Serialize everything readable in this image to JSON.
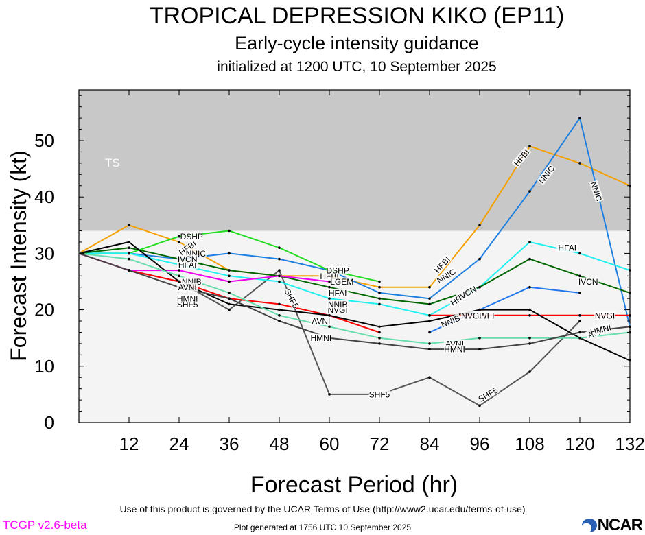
{
  "header": {
    "title": "TROPICAL DEPRESSION KIKO (EP11)",
    "subtitle": "Early-cycle intensity guidance",
    "init": "initialized at 1200 UTC, 10 September 2025"
  },
  "footer": {
    "terms": "Use of this product is governed by the UCAR Terms of Use (http://www2.ucar.edu/terms-of-use)",
    "version": "TCGP v2.6-beta",
    "generated": "Plot generated at 1756 UTC   10 September 2025",
    "logo": "NCAR"
  },
  "chart_data": {
    "type": "line",
    "xlabel": "Forecast Period (hr)",
    "ylabel": "Forecast Intensity (kt)",
    "xlim": [
      0,
      132
    ],
    "ylim": [
      0,
      59
    ],
    "xticks": [
      12,
      24,
      36,
      48,
      60,
      72,
      84,
      96,
      108,
      120,
      132
    ],
    "yticks": [
      0,
      10,
      20,
      30,
      40,
      50
    ],
    "bands": [
      {
        "label": "TS",
        "from": 34,
        "to": 59,
        "color": "#c8c8c8"
      },
      {
        "label": "",
        "from": 0,
        "to": 34,
        "color": "#f4f4f4"
      }
    ],
    "series": [
      {
        "name": "SHF5",
        "color": "#555555",
        "points": [
          [
            0,
            30
          ],
          [
            12,
            27
          ],
          [
            24,
            25
          ],
          [
            36,
            20
          ],
          [
            48,
            27
          ],
          [
            60,
            5
          ],
          [
            72,
            5
          ],
          [
            84,
            8
          ],
          [
            96,
            3
          ],
          [
            108,
            9
          ],
          [
            120,
            18
          ]
        ],
        "labels": [
          {
            "text": "SHF5",
            "x": 26,
            "y": 21
          },
          {
            "text": "SHF5",
            "x": 51,
            "y": 22,
            "angle": 62
          },
          {
            "text": "SHF5",
            "x": 72,
            "y": 5
          },
          {
            "text": "SHF5",
            "x": 98,
            "y": 5,
            "angle": -30
          }
        ]
      },
      {
        "name": "HFBI",
        "color": "#f5a000",
        "points": [
          [
            0,
            30
          ],
          [
            12,
            35
          ],
          [
            24,
            32
          ],
          [
            36,
            27
          ],
          [
            48,
            26
          ],
          [
            60,
            26
          ],
          [
            72,
            24
          ],
          [
            84,
            24
          ],
          [
            96,
            35
          ],
          [
            108,
            49
          ],
          [
            120,
            46
          ],
          [
            132,
            42
          ]
        ],
        "labels": [
          {
            "text": "HFBI",
            "x": 26,
            "y": 31,
            "angle": -35
          },
          {
            "text": "HFBI",
            "x": 60,
            "y": 26
          },
          {
            "text": "HFBI",
            "x": 87,
            "y": 28,
            "angle": -48
          },
          {
            "text": "HFBI",
            "x": 106,
            "y": 47,
            "angle": -50
          }
        ]
      },
      {
        "name": "NNIC",
        "color": "#1e7fe0",
        "points": [
          [
            0,
            30
          ],
          [
            12,
            30
          ],
          [
            24,
            29
          ],
          [
            36,
            30
          ],
          [
            48,
            29
          ],
          [
            60,
            27
          ],
          [
            72,
            23
          ],
          [
            84,
            22
          ],
          [
            96,
            29
          ],
          [
            108,
            41
          ],
          [
            120,
            54
          ],
          [
            132,
            17
          ]
        ],
        "labels": [
          {
            "text": "NNIC",
            "x": 28,
            "y": 30
          },
          {
            "text": "NNIC",
            "x": 88,
            "y": 26,
            "angle": -32
          },
          {
            "text": "NNIC",
            "x": 112,
            "y": 44,
            "angle": -52
          },
          {
            "text": "NNIC",
            "x": 124,
            "y": 41,
            "angle": 72
          }
        ]
      },
      {
        "name": "DSHP",
        "color": "#22dd22",
        "points": [
          [
            0,
            30
          ],
          [
            12,
            30
          ],
          [
            24,
            33
          ],
          [
            36,
            34
          ],
          [
            48,
            31
          ],
          [
            60,
            27
          ],
          [
            72,
            25
          ]
        ],
        "labels": [
          {
            "text": "DSHP",
            "x": 27,
            "y": 33
          },
          {
            "text": "DSHP",
            "x": 62,
            "y": 27
          }
        ]
      },
      {
        "name": "HFAI",
        "color": "#22f0f0",
        "points": [
          [
            0,
            30
          ],
          [
            12,
            30
          ],
          [
            24,
            28
          ],
          [
            36,
            26
          ],
          [
            48,
            25
          ],
          [
            60,
            22
          ],
          [
            72,
            21
          ],
          [
            84,
            19
          ],
          [
            96,
            24
          ],
          [
            108,
            32
          ],
          [
            120,
            30
          ],
          [
            132,
            27
          ]
        ],
        "labels": [
          {
            "text": "HFAI",
            "x": 26,
            "y": 28
          },
          {
            "text": "HFAI",
            "x": 62,
            "y": 23
          },
          {
            "text": "HFAI",
            "x": 91,
            "y": 22,
            "angle": -35
          },
          {
            "text": "HFAI",
            "x": 117,
            "y": 31
          }
        ]
      },
      {
        "name": "IVCN",
        "color": "#006600",
        "points": [
          [
            0,
            30
          ],
          [
            12,
            31
          ],
          [
            24,
            29
          ],
          [
            36,
            27
          ],
          [
            48,
            26
          ],
          [
            60,
            24
          ],
          [
            72,
            22
          ],
          [
            84,
            21
          ],
          [
            96,
            24
          ],
          [
            108,
            29
          ],
          [
            120,
            26
          ],
          [
            132,
            23
          ]
        ],
        "labels": [
          {
            "text": "IVCN",
            "x": 26,
            "y": 29
          },
          {
            "text": "IVCN",
            "x": 62,
            "y": 21
          },
          {
            "text": "IVCN",
            "x": 93,
            "y": 23,
            "angle": -30
          },
          {
            "text": "IVCN",
            "x": 122,
            "y": 25
          }
        ]
      },
      {
        "name": "NVGI",
        "color": "#ff0000",
        "points": [
          [
            0,
            30
          ],
          [
            12,
            27
          ],
          [
            24,
            25
          ],
          [
            36,
            22
          ],
          [
            48,
            21
          ],
          [
            60,
            19
          ],
          [
            72,
            16
          ]
        ],
        "labels": [
          {
            "text": "NVGI",
            "x": 27,
            "y": 25
          },
          {
            "text": "NVGI",
            "x": 62,
            "y": 20
          }
        ]
      },
      {
        "name": "HWFI",
        "color": "#2277ee",
        "points": [
          [
            84,
            16
          ],
          [
            96,
            20
          ],
          [
            108,
            24
          ],
          [
            120,
            23
          ]
        ],
        "labels": [
          {
            "text": "HWFI",
            "x": 97,
            "y": 19
          }
        ]
      },
      {
        "name": "LGEM",
        "color": "#ee00ee",
        "points": [
          [
            0,
            30
          ],
          [
            12,
            27
          ],
          [
            24,
            27
          ],
          [
            36,
            25
          ],
          [
            48,
            26
          ],
          [
            60,
            25
          ]
        ],
        "labels": [
          {
            "text": "LGEM",
            "x": 63,
            "y": 25
          }
        ]
      },
      {
        "name": "NVGI",
        "color": "#ff0000",
        "points": [
          [
            84,
            19
          ],
          [
            96,
            19
          ],
          [
            108,
            19
          ],
          [
            120,
            19
          ],
          [
            132,
            19
          ]
        ],
        "labels": [
          {
            "text": "NVGI",
            "x": 94,
            "y": 19
          },
          {
            "text": "NVGI",
            "x": 126,
            "y": 19
          }
        ]
      },
      {
        "name": "NNIB",
        "color": "#000000",
        "points": [
          [
            0,
            30
          ],
          [
            12,
            32
          ],
          [
            24,
            25
          ],
          [
            36,
            21
          ],
          [
            48,
            20
          ],
          [
            60,
            19
          ],
          [
            72,
            17
          ],
          [
            84,
            18
          ],
          [
            96,
            20
          ],
          [
            108,
            20
          ],
          [
            120,
            15
          ],
          [
            132,
            11
          ]
        ],
        "labels": [
          {
            "text": "NNIB",
            "x": 27,
            "y": 25
          },
          {
            "text": "NNIB",
            "x": 62,
            "y": 21
          },
          {
            "text": "NNIB",
            "x": 89,
            "y": 18,
            "angle": -22
          }
        ]
      },
      {
        "name": "AVNI",
        "color": "#66ddaa",
        "points": [
          [
            0,
            30
          ],
          [
            12,
            29
          ],
          [
            24,
            26
          ],
          [
            36,
            23
          ],
          [
            48,
            19
          ],
          [
            60,
            17
          ],
          [
            72,
            15
          ],
          [
            84,
            14
          ],
          [
            96,
            15
          ],
          [
            108,
            15
          ],
          [
            120,
            15
          ],
          [
            132,
            16
          ]
        ],
        "labels": [
          {
            "text": "AVNI",
            "x": 26,
            "y": 24
          },
          {
            "text": "AVNI",
            "x": 58,
            "y": 18
          },
          {
            "text": "AVNI",
            "x": 90,
            "y": 14
          },
          {
            "text": "AVNI",
            "x": 124,
            "y": 16,
            "angle": -20
          }
        ]
      },
      {
        "name": "HMNI",
        "color": "#444444",
        "points": [
          [
            0,
            30
          ],
          [
            12,
            27
          ],
          [
            24,
            24
          ],
          [
            36,
            22
          ],
          [
            48,
            18
          ],
          [
            60,
            15
          ],
          [
            72,
            14
          ],
          [
            84,
            13
          ],
          [
            96,
            13
          ],
          [
            108,
            14
          ],
          [
            120,
            16
          ],
          [
            132,
            17
          ]
        ],
        "labels": [
          {
            "text": "HMNI",
            "x": 26,
            "y": 22
          },
          {
            "text": "HMNI",
            "x": 58,
            "y": 15
          },
          {
            "text": "HMNI",
            "x": 90,
            "y": 13
          },
          {
            "text": "HMNI",
            "x": 125,
            "y": 16.5,
            "angle": -15
          }
        ]
      }
    ]
  }
}
